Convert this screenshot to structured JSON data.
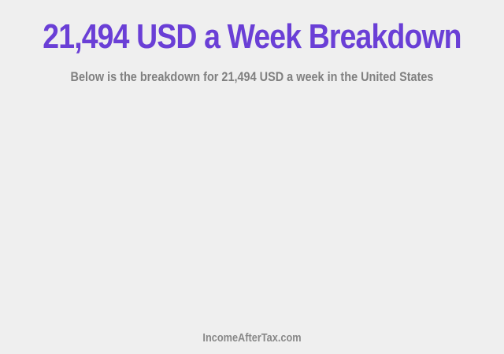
{
  "title": "21,494 USD a Week Breakdown",
  "subtitle": "Below is the breakdown for 21,494 USD a week in the United States",
  "footer": "IncomeAfterTax.com",
  "colors": {
    "title": "#6a3fd6",
    "background": "#efefef"
  }
}
